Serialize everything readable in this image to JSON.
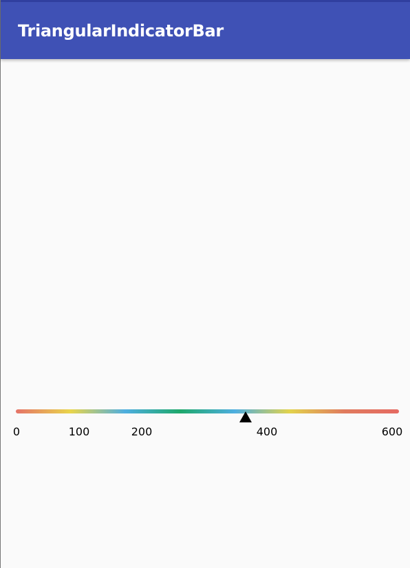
{
  "app_bar": {
    "title": "TriangularIndicatorBar",
    "color": "#3f51b5",
    "status_color": "#303f9f"
  },
  "indicator": {
    "min": 0,
    "max": 600,
    "value": 360,
    "tick_labels": [
      "0",
      "100",
      "200",
      "400",
      "600"
    ],
    "tick_values": [
      0,
      100,
      200,
      400,
      600
    ],
    "gradient_colors": [
      "#e57368",
      "#e9d54b",
      "#4eaee0",
      "#1ea86b",
      "#4eaee0",
      "#e2d34c",
      "#e07b5e",
      "#e56a62"
    ],
    "pointer_icon": "triangle-up-icon"
  }
}
